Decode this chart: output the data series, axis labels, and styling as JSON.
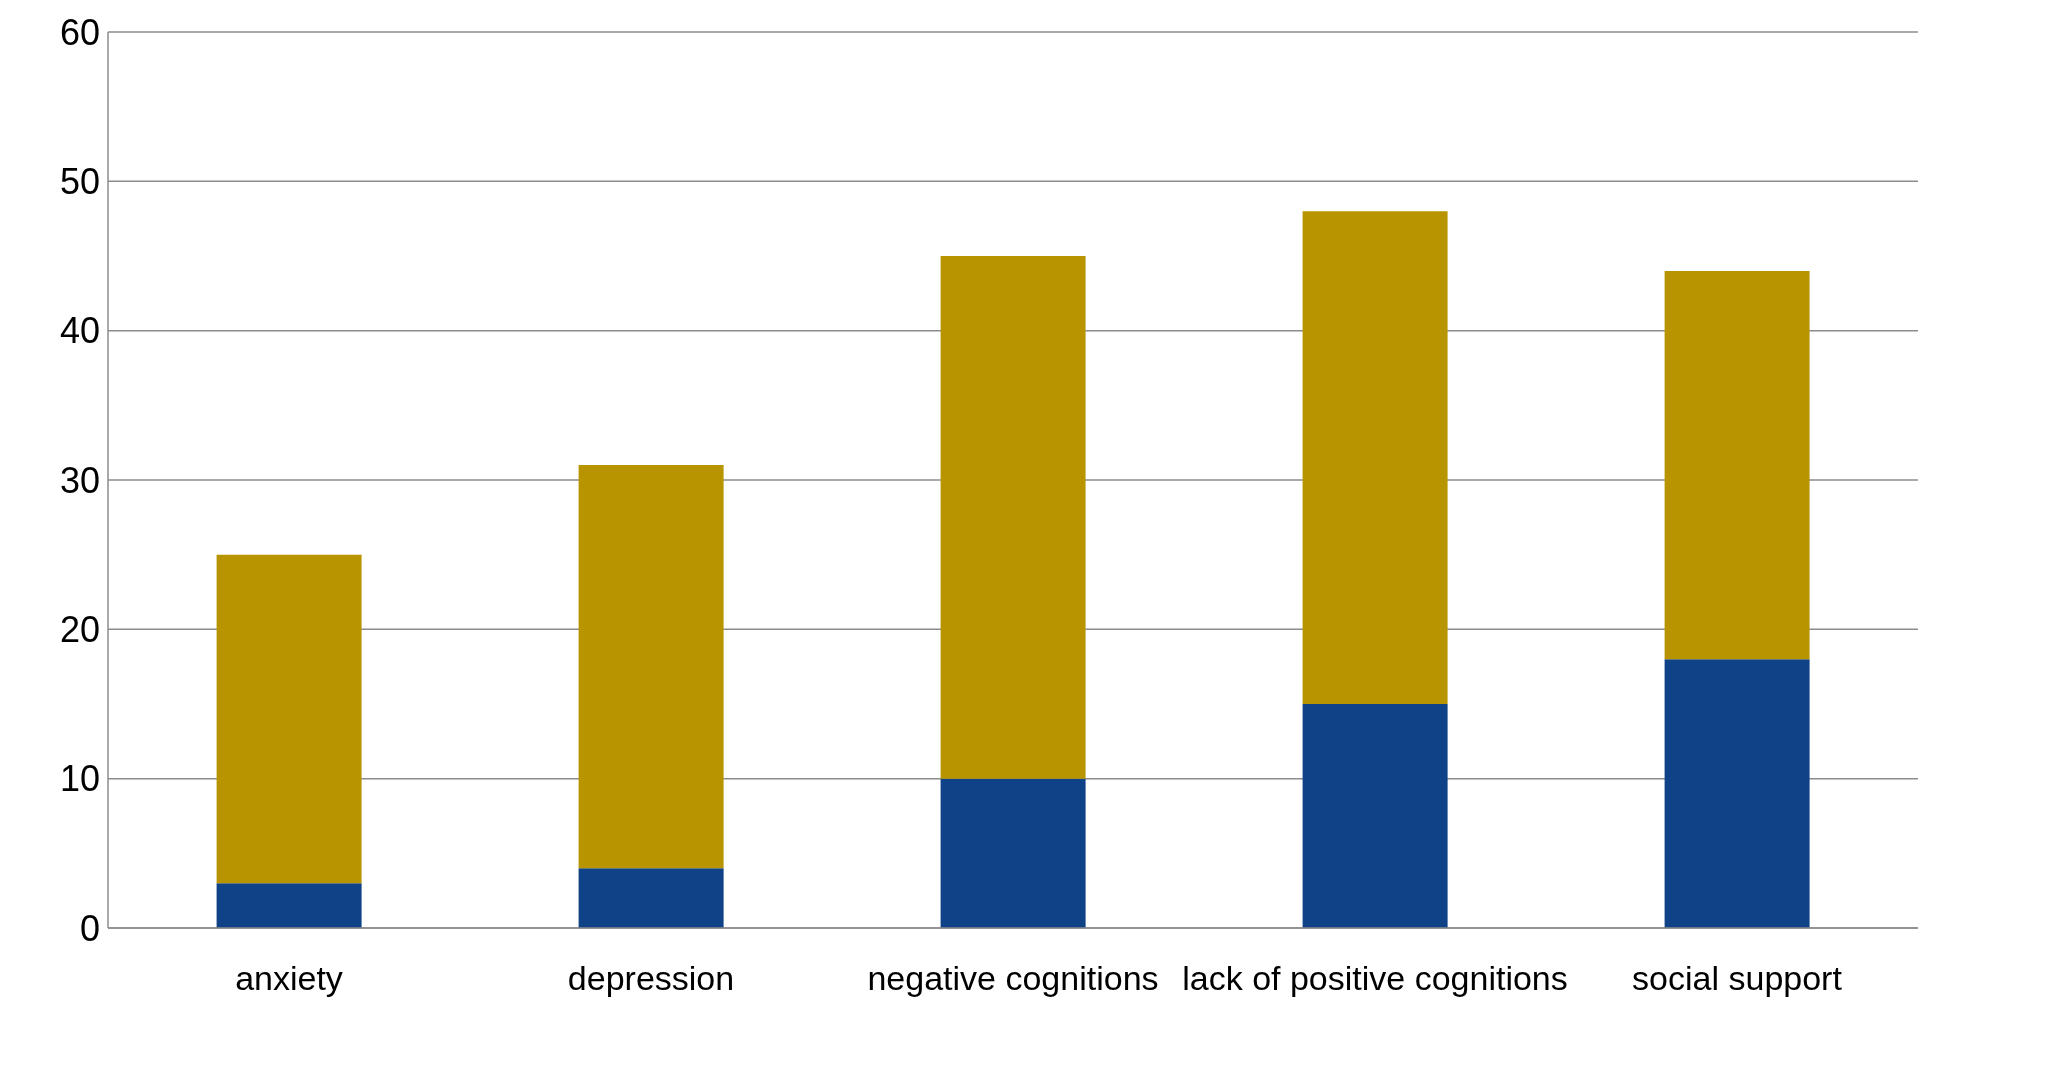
{
  "chart_data": {
    "type": "bar",
    "stacked": true,
    "categories": [
      "anxiety",
      "depression",
      "negative cognitions",
      "lack of positive cognitions",
      "social support"
    ],
    "series": [
      {
        "color": "#0f4287",
        "values": [
          3,
          4,
          10,
          15,
          18
        ]
      },
      {
        "color": "#b89500",
        "values": [
          22,
          27,
          35,
          33,
          26
        ]
      }
    ],
    "ylim": [
      0,
      60
    ],
    "yticks": [
      0,
      10,
      20,
      30,
      40,
      50,
      60
    ],
    "grid": "y",
    "legend": false
  }
}
